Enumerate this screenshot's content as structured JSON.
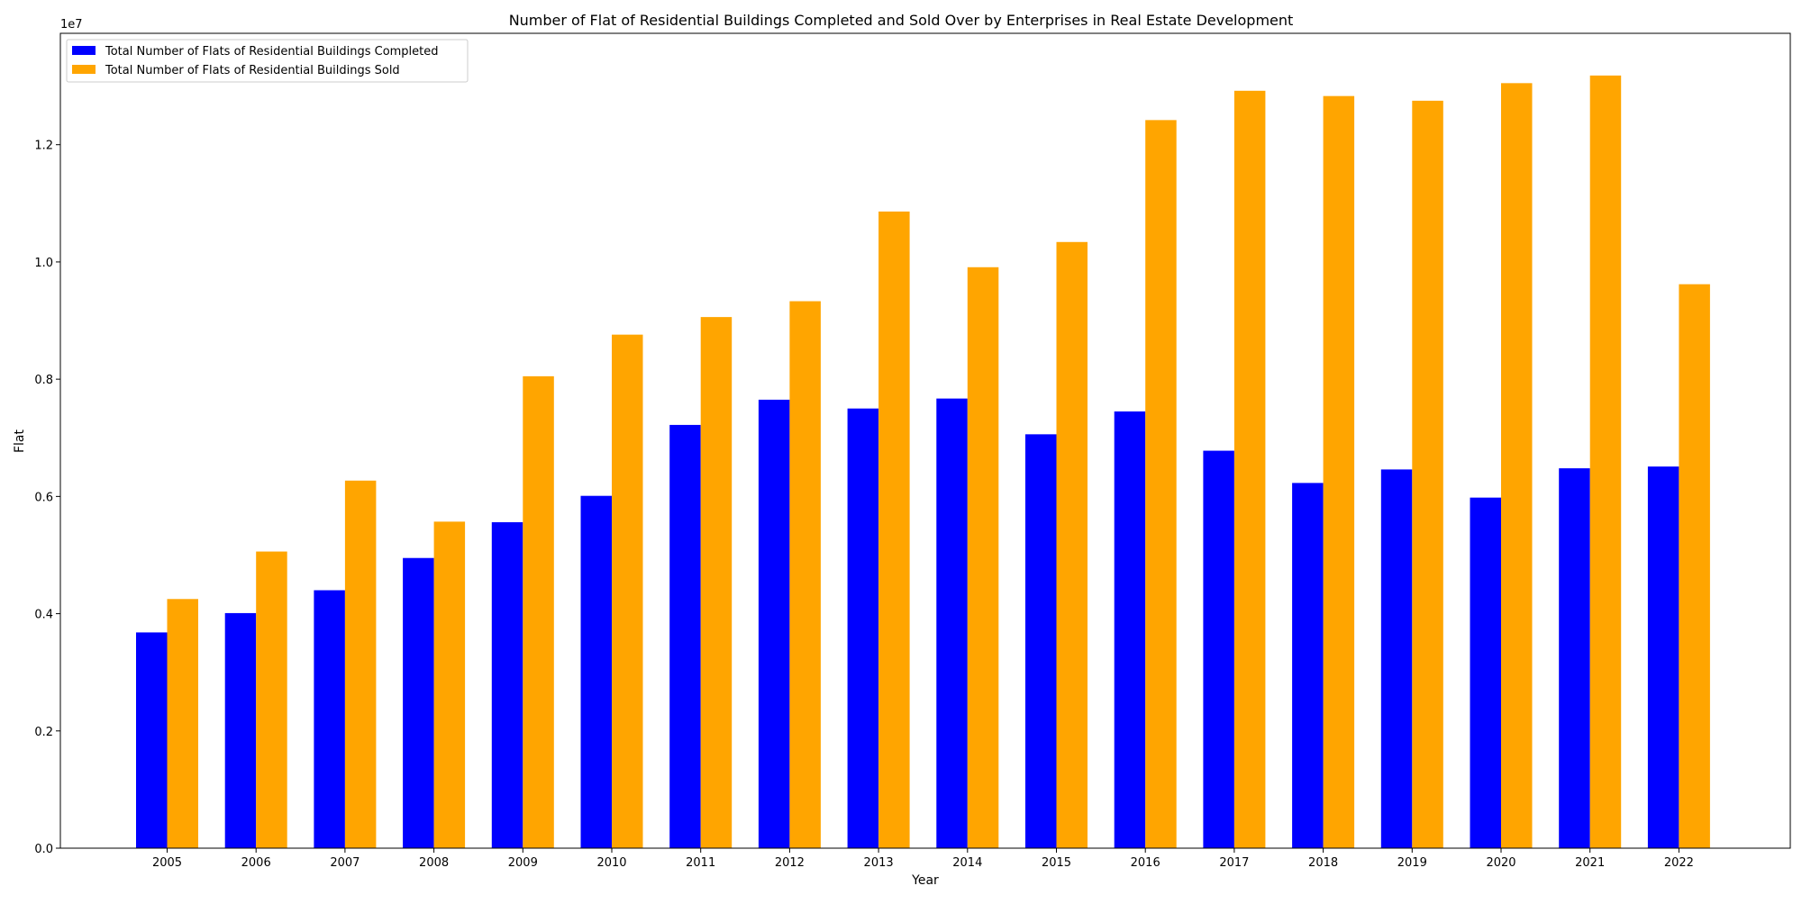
{
  "chart_data": {
    "type": "bar",
    "title": "Number of Flat of Residential Buildings Completed and Sold Over by Enterprises in Real Estate Development",
    "xlabel": "Year",
    "ylabel": "Flat",
    "offset_label": "1e7",
    "ylim": [
      0,
      13900000
    ],
    "y_ticks": [
      0,
      2000000,
      4000000,
      6000000,
      8000000,
      10000000,
      12000000
    ],
    "y_tick_labels": [
      "0.0",
      "0.2",
      "0.4",
      "0.6",
      "0.8",
      "1.0",
      "1.2"
    ],
    "grid": false,
    "legend_position": "top-left",
    "categories": [
      "2005",
      "2006",
      "2007",
      "2008",
      "2009",
      "2010",
      "2011",
      "2012",
      "2013",
      "2014",
      "2015",
      "2016",
      "2017",
      "2018",
      "2019",
      "2020",
      "2021",
      "2022"
    ],
    "series": [
      {
        "name": "Total Number of Flats of Residential Buildings Completed",
        "color": "#0000ff",
        "values": [
          3680000,
          4010000,
          4400000,
          4950000,
          5560000,
          6010000,
          7220000,
          7650000,
          7500000,
          7670000,
          7060000,
          7450000,
          6780000,
          6230000,
          6460000,
          5980000,
          6480000,
          6510000
        ]
      },
      {
        "name": "Total Number of Flats of Residential Buildings Sold",
        "color": "#ffa500",
        "values": [
          4250000,
          5060000,
          6270000,
          5570000,
          8050000,
          8760000,
          9060000,
          9330000,
          10860000,
          9910000,
          10340000,
          12420000,
          12920000,
          12830000,
          12750000,
          13050000,
          13180000,
          9620000
        ]
      }
    ]
  }
}
